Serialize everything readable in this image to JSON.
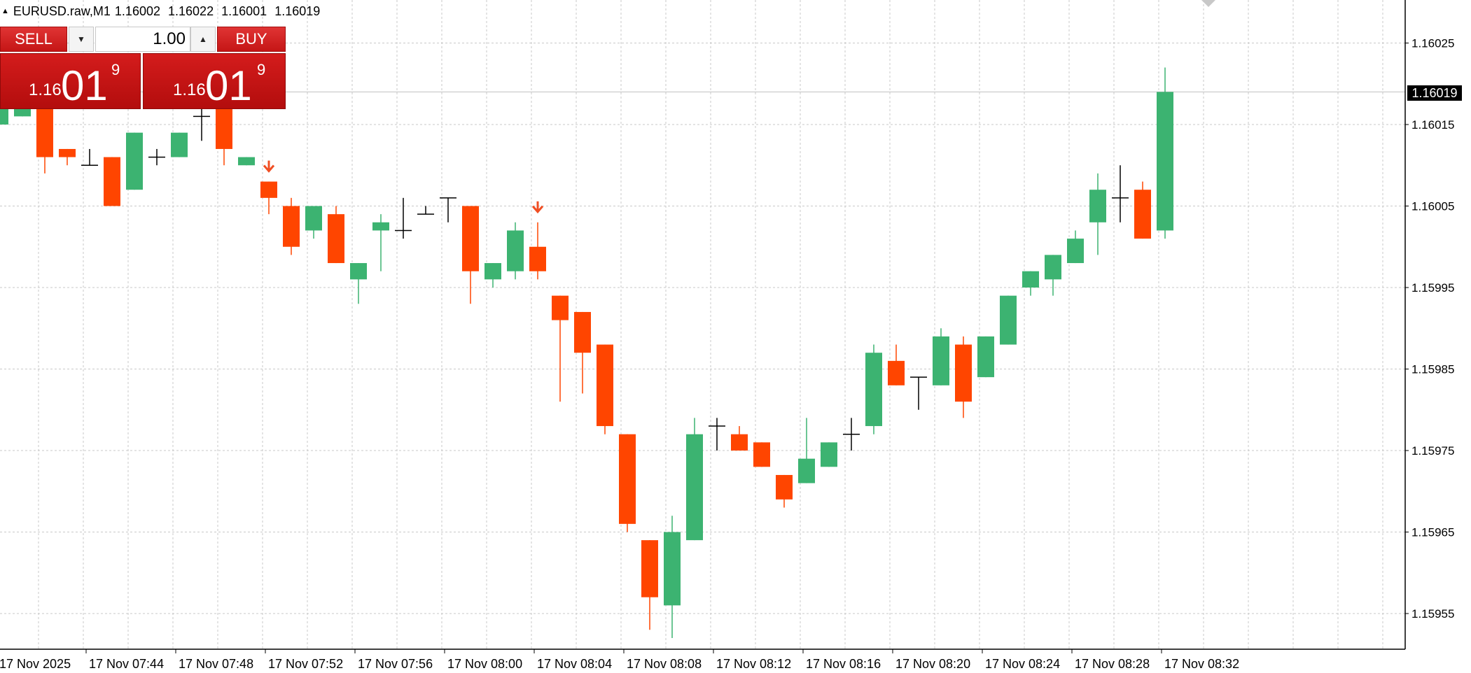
{
  "title": {
    "symbol": "EURUSD.raw,M1",
    "open": "1.16002",
    "high": "1.16022",
    "low": "1.16001",
    "close": "1.16019"
  },
  "trade_panel": {
    "sell_label": "SELL",
    "buy_label": "BUY",
    "lot_value": "1.00",
    "sell_price_small": "1.16",
    "sell_price_big": "01",
    "sell_price_sup": "9",
    "buy_price_small": "1.16",
    "buy_price_big": "01",
    "buy_price_sup": "9",
    "icons": {
      "lot_down": "triangle-down-icon",
      "lot_up": "triangle-up-icon"
    }
  },
  "current_price_label": "1.16019",
  "colors": {
    "bull": "#3cb371",
    "bear": "#ff4500",
    "doji": "#000000",
    "panel": "#c81818",
    "arrow": "#f04e23"
  },
  "chart_data": {
    "type": "candlestick",
    "timeframe": "M1",
    "ylim": [
      1.1595,
      1.1603
    ],
    "y_ticks": [
      "1.16025",
      "1.16015",
      "1.16005",
      "1.15995",
      "1.15985",
      "1.15975",
      "1.15965",
      "1.15955"
    ],
    "x_ticks": [
      "17 Nov 2025",
      "17 Nov 07:44",
      "17 Nov 07:48",
      "17 Nov 07:52",
      "17 Nov 07:56",
      "17 Nov 08:00",
      "17 Nov 08:04",
      "17 Nov 08:08",
      "17 Nov 08:12",
      "17 Nov 08:16",
      "17 Nov 08:20",
      "17 Nov 08:24",
      "17 Nov 08:28",
      "17 Nov 08:32"
    ],
    "grid": true,
    "candles": [
      {
        "o": 1.16015,
        "h": 1.16017,
        "l": 1.16015,
        "c": 1.16017
      },
      {
        "o": 1.16016,
        "h": 1.16017,
        "l": 1.16016,
        "c": 1.16017
      },
      {
        "o": 1.16017,
        "h": 1.16017,
        "l": 1.16009,
        "c": 1.16011
      },
      {
        "o": 1.16012,
        "h": 1.16012,
        "l": 1.1601,
        "c": 1.16011
      },
      {
        "o": 1.1601,
        "h": 1.16012,
        "l": 1.1601,
        "c": 1.1601
      },
      {
        "o": 1.16011,
        "h": 1.16011,
        "l": 1.16005,
        "c": 1.16005
      },
      {
        "o": 1.16007,
        "h": 1.16014,
        "l": 1.16007,
        "c": 1.16014
      },
      {
        "o": 1.16011,
        "h": 1.16012,
        "l": 1.1601,
        "c": 1.16011
      },
      {
        "o": 1.16011,
        "h": 1.16014,
        "l": 1.16011,
        "c": 1.16014
      },
      {
        "o": 1.16016,
        "h": 1.16018,
        "l": 1.16013,
        "c": 1.16016
      },
      {
        "o": 1.16017,
        "h": 1.16017,
        "l": 1.1601,
        "c": 1.16012
      },
      {
        "o": 1.1601,
        "h": 1.16011,
        "l": 1.1601,
        "c": 1.16011
      },
      {
        "o": 1.16008,
        "h": 1.16008,
        "l": 1.16004,
        "c": 1.16006
      },
      {
        "o": 1.16005,
        "h": 1.16006,
        "l": 1.15999,
        "c": 1.16
      },
      {
        "o": 1.16002,
        "h": 1.16005,
        "l": 1.16001,
        "c": 1.16005
      },
      {
        "o": 1.16004,
        "h": 1.16005,
        "l": 1.15998,
        "c": 1.15998
      },
      {
        "o": 1.15996,
        "h": 1.15998,
        "l": 1.15993,
        "c": 1.15998
      },
      {
        "o": 1.16002,
        "h": 1.16004,
        "l": 1.15997,
        "c": 1.16003
      },
      {
        "o": 1.16002,
        "h": 1.16006,
        "l": 1.16001,
        "c": 1.16002
      },
      {
        "o": 1.16004,
        "h": 1.16005,
        "l": 1.16004,
        "c": 1.16004
      },
      {
        "o": 1.16006,
        "h": 1.16006,
        "l": 1.16003,
        "c": 1.16006
      },
      {
        "o": 1.16005,
        "h": 1.16005,
        "l": 1.15993,
        "c": 1.15997
      },
      {
        "o": 1.15996,
        "h": 1.15998,
        "l": 1.15995,
        "c": 1.15998
      },
      {
        "o": 1.15997,
        "h": 1.16003,
        "l": 1.15996,
        "c": 1.16002
      },
      {
        "o": 1.16,
        "h": 1.16003,
        "l": 1.15996,
        "c": 1.15997
      },
      {
        "o": 1.15994,
        "h": 1.15994,
        "l": 1.15981,
        "c": 1.15991
      },
      {
        "o": 1.15992,
        "h": 1.15992,
        "l": 1.15982,
        "c": 1.15987
      },
      {
        "o": 1.15988,
        "h": 1.15988,
        "l": 1.15977,
        "c": 1.15978
      },
      {
        "o": 1.15977,
        "h": 1.15977,
        "l": 1.15965,
        "c": 1.15966
      },
      {
        "o": 1.15964,
        "h": 1.15964,
        "l": 1.15953,
        "c": 1.15957
      },
      {
        "o": 1.15956,
        "h": 1.15967,
        "l": 1.15952,
        "c": 1.15965
      },
      {
        "o": 1.15964,
        "h": 1.15979,
        "l": 1.15964,
        "c": 1.15977
      },
      {
        "o": 1.15978,
        "h": 1.15979,
        "l": 1.15975,
        "c": 1.15978
      },
      {
        "o": 1.15977,
        "h": 1.15978,
        "l": 1.15975,
        "c": 1.15975
      },
      {
        "o": 1.15976,
        "h": 1.15976,
        "l": 1.15973,
        "c": 1.15973
      },
      {
        "o": 1.15972,
        "h": 1.15972,
        "l": 1.15968,
        "c": 1.15969
      },
      {
        "o": 1.15971,
        "h": 1.15979,
        "l": 1.15971,
        "c": 1.15974
      },
      {
        "o": 1.15973,
        "h": 1.15976,
        "l": 1.15973,
        "c": 1.15976
      },
      {
        "o": 1.15977,
        "h": 1.15979,
        "l": 1.15975,
        "c": 1.15977
      },
      {
        "o": 1.15978,
        "h": 1.15988,
        "l": 1.15977,
        "c": 1.15987
      },
      {
        "o": 1.15986,
        "h": 1.15988,
        "l": 1.15983,
        "c": 1.15983
      },
      {
        "o": 1.15984,
        "h": 1.15984,
        "l": 1.1598,
        "c": 1.15984
      },
      {
        "o": 1.15983,
        "h": 1.1599,
        "l": 1.15983,
        "c": 1.15989
      },
      {
        "o": 1.15988,
        "h": 1.15989,
        "l": 1.15979,
        "c": 1.15981
      },
      {
        "o": 1.15984,
        "h": 1.15989,
        "l": 1.15984,
        "c": 1.15989
      },
      {
        "o": 1.15988,
        "h": 1.15994,
        "l": 1.15988,
        "c": 1.15994
      },
      {
        "o": 1.15995,
        "h": 1.15997,
        "l": 1.15994,
        "c": 1.15997
      },
      {
        "o": 1.15996,
        "h": 1.15999,
        "l": 1.15994,
        "c": 1.15999
      },
      {
        "o": 1.15998,
        "h": 1.16002,
        "l": 1.15998,
        "c": 1.16001
      },
      {
        "o": 1.16003,
        "h": 1.16009,
        "l": 1.15999,
        "c": 1.16007
      },
      {
        "o": 1.16006,
        "h": 1.1601,
        "l": 1.16003,
        "c": 1.16006
      },
      {
        "o": 1.16007,
        "h": 1.16008,
        "l": 1.16001,
        "c": 1.16001
      },
      {
        "o": 1.16002,
        "h": 1.16022,
        "l": 1.16001,
        "c": 1.16019
      }
    ],
    "signal_arrows": [
      {
        "candle_index": 12,
        "direction": "down"
      },
      {
        "candle_index": 24,
        "direction": "down"
      }
    ]
  }
}
